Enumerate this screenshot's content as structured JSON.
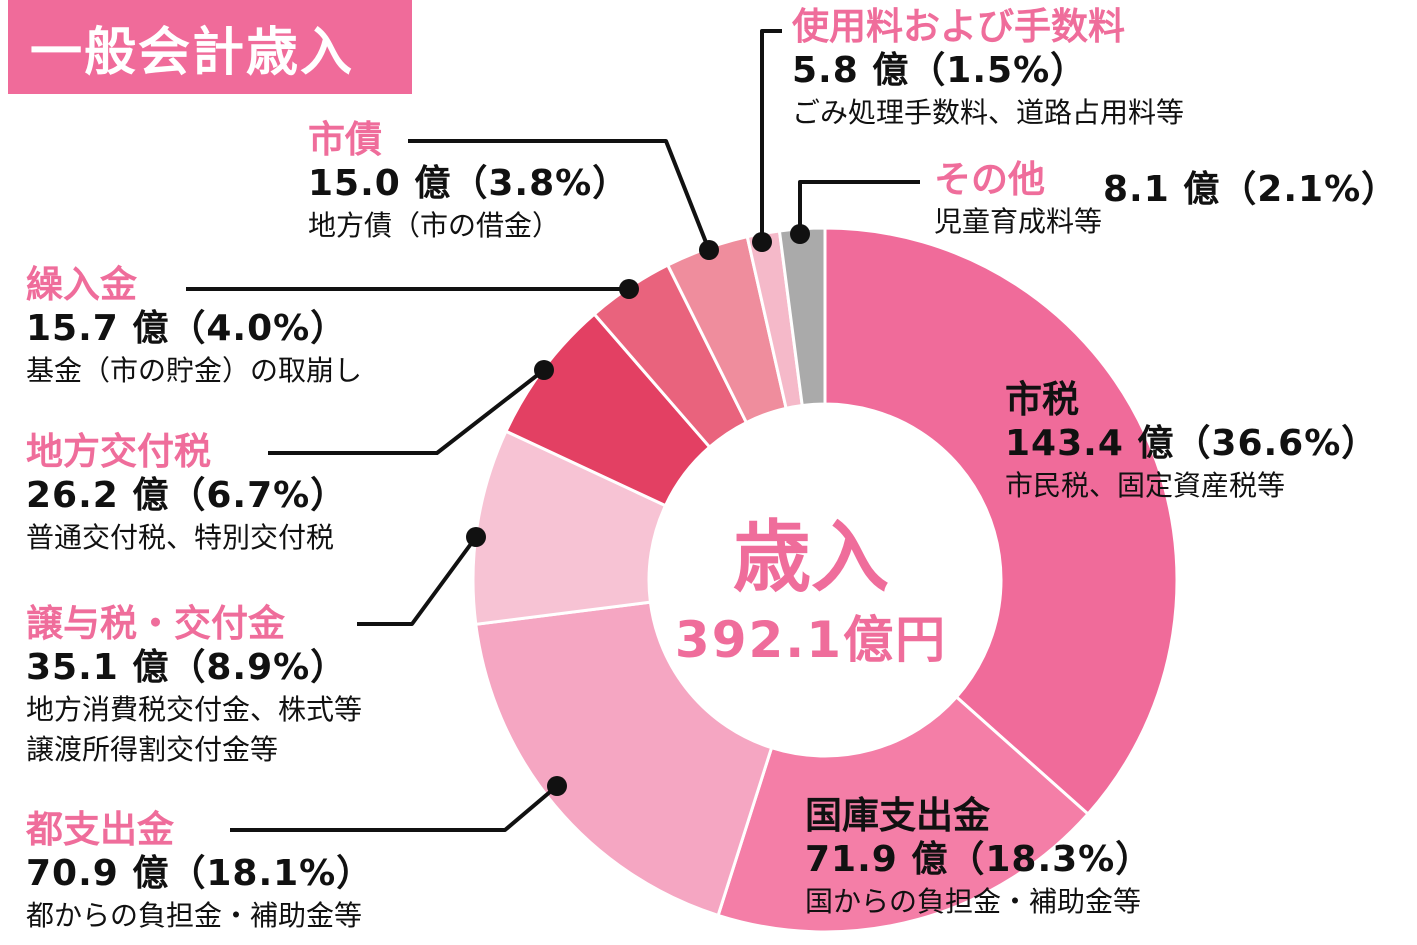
{
  "page_title": "一般会計歳入",
  "center": {
    "title": "歳入",
    "total": "392.1億円"
  },
  "colors": {
    "title_bg": "#f06b9a",
    "accent_text": "#ef6d9b",
    "slices": [
      "#f06b9a",
      "#f47ea7",
      "#f5a6c2",
      "#f7c3d4",
      "#e34063",
      "#e9637d",
      "#ef8d9d",
      "#f5b9c9",
      "#aaaaaa"
    ]
  },
  "chart_data": {
    "type": "pie",
    "style": "donut",
    "total": 392.1,
    "total_label": "392.1億円",
    "categories": [
      "市税",
      "国庫支出金",
      "都支出金",
      "譲与税・交付金",
      "地方交付税",
      "繰入金",
      "市債",
      "使用料および手数料",
      "その他"
    ],
    "values": [
      143.4,
      71.9,
      70.9,
      35.1,
      26.2,
      15.7,
      15.0,
      5.8,
      8.1
    ],
    "percentages": [
      36.6,
      18.3,
      18.1,
      8.9,
      6.7,
      4.0,
      3.8,
      1.5,
      2.1
    ],
    "value_labels": [
      "143.4 億（36.6%）",
      "71.9 億（18.3%）",
      "70.9 億（18.1%）",
      "35.1 億（8.9%）",
      "26.2 億（6.7%）",
      "15.7 億（4.0%）",
      "15.0 億（3.8%）",
      "5.8 億（1.5%）",
      "8.1 億（2.1%）"
    ],
    "notes": [
      [
        "市民税、固定資産税等"
      ],
      [
        "国からの負担金・補助金等"
      ],
      [
        "都からの負担金・補助金等"
      ],
      [
        "地方消費税交付金、株式等",
        "譲渡所得割交付金等"
      ],
      [
        "普通交付税、特別交付税"
      ],
      [
        "基金（市の貯金）の取崩し"
      ],
      [
        "地方債（市の借金）"
      ],
      [
        "ごみ処理手数料、道路占用料等"
      ],
      [
        "児童育成料等"
      ]
    ]
  }
}
